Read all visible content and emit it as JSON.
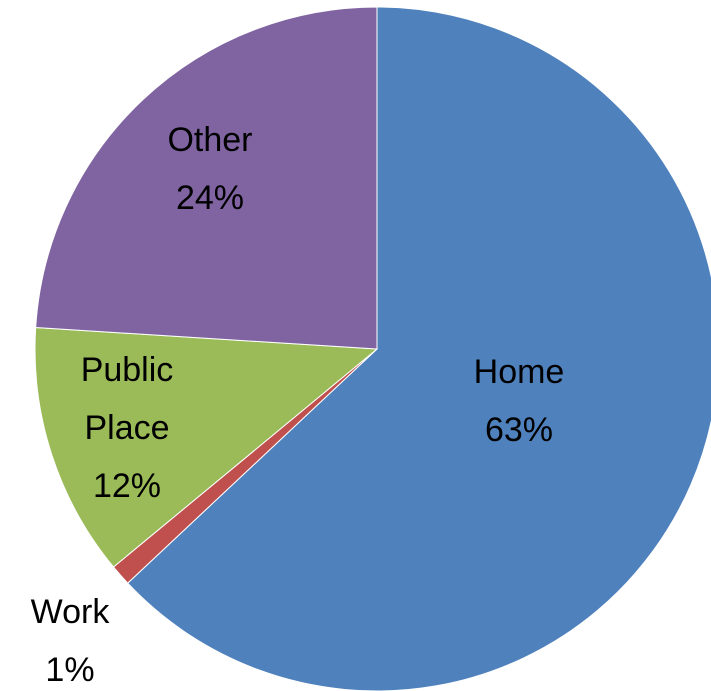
{
  "chart_data": {
    "type": "pie",
    "categories": [
      "Home",
      "Work",
      "Public Place",
      "Other"
    ],
    "values": [
      63,
      1,
      12,
      24
    ],
    "value_labels": [
      "63%",
      "1%",
      "12%",
      "24%"
    ],
    "colors": [
      "#4f81bd",
      "#c0504d",
      "#9bbb59",
      "#8064a2"
    ]
  }
}
